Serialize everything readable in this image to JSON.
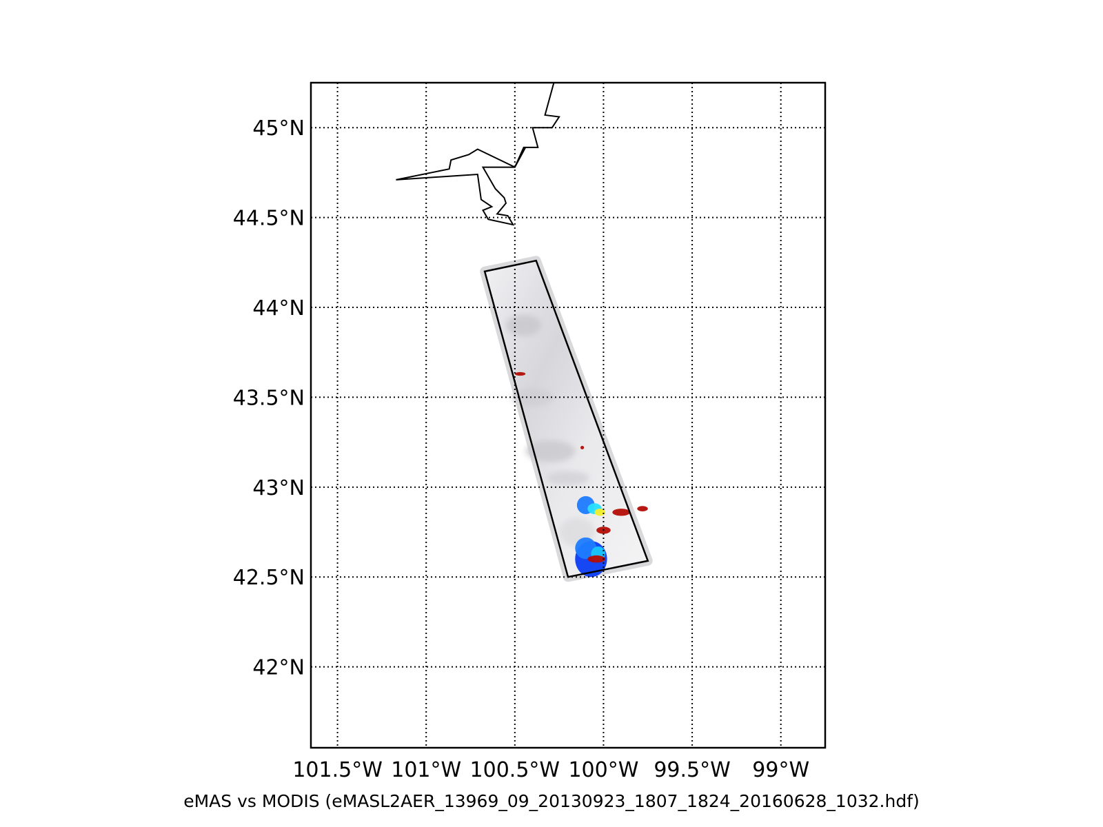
{
  "map": {
    "projection": "lat-lon",
    "lon_range": [
      -101.65,
      -98.75
    ],
    "lat_range": [
      41.55,
      45.25
    ],
    "meridians": [
      -101.5,
      -101.0,
      -100.5,
      -100.0,
      -99.5,
      -99.0
    ],
    "parallels": [
      42.0,
      42.5,
      43.0,
      43.5,
      44.0,
      44.5,
      45.0
    ],
    "lon_labels": [
      "101.5°W",
      "101°W",
      "100.5°W",
      "100°W",
      "99.5°W",
      "99°W"
    ],
    "lat_labels": [
      "42°N",
      "42.5°N",
      "43°N",
      "43.5°N",
      "44°N",
      "44.5°N",
      "45°N"
    ],
    "grid_style": "dotted",
    "frame_color": "#000000"
  },
  "caption": "eMAS vs MODIS (eMASL2AER_13969_09_20130923_1807_1824_20160628_1032.hdf)",
  "flight_box": {
    "corners": [
      {
        "lon": -100.67,
        "lat": 44.2
      },
      {
        "lon": -100.38,
        "lat": 44.26
      },
      {
        "lon": -99.75,
        "lat": 42.59
      },
      {
        "lon": -100.2,
        "lat": 42.5
      }
    ]
  },
  "boundary_line": {
    "points": [
      {
        "lon": -100.28,
        "lat": 45.25
      },
      {
        "lon": -100.33,
        "lat": 45.07
      },
      {
        "lon": -100.25,
        "lat": 45.06
      },
      {
        "lon": -100.29,
        "lat": 45.0
      },
      {
        "lon": -100.4,
        "lat": 45.0
      },
      {
        "lon": -100.37,
        "lat": 44.89
      },
      {
        "lon": -100.45,
        "lat": 44.89
      },
      {
        "lon": -100.5,
        "lat": 44.78
      },
      {
        "lon": -100.71,
        "lat": 44.88
      },
      {
        "lon": -100.76,
        "lat": 44.85
      },
      {
        "lon": -100.86,
        "lat": 44.82
      },
      {
        "lon": -100.87,
        "lat": 44.77
      },
      {
        "lon": -101.17,
        "lat": 44.71
      },
      {
        "lon": -100.71,
        "lat": 44.74
      },
      {
        "lon": -100.69,
        "lat": 44.6
      },
      {
        "lon": -100.63,
        "lat": 44.56
      },
      {
        "lon": -100.68,
        "lat": 44.54
      },
      {
        "lon": -100.65,
        "lat": 44.49
      },
      {
        "lon": -100.51,
        "lat": 44.46
      },
      {
        "lon": -100.54,
        "lat": 44.51
      },
      {
        "lon": -100.6,
        "lat": 44.52
      },
      {
        "lon": -100.55,
        "lat": 44.58
      },
      {
        "lon": -100.56,
        "lat": 44.61
      },
      {
        "lon": -100.61,
        "lat": 44.66
      },
      {
        "lon": -100.68,
        "lat": 44.78
      },
      {
        "lon": -100.5,
        "lat": 44.78
      },
      {
        "lon": -100.44,
        "lat": 44.89
      },
      {
        "lon": -100.45,
        "lat": 44.89
      }
    ]
  },
  "retrieval_patches": [
    {
      "lon": -100.07,
      "lat": 42.6,
      "rx": 0.09,
      "ry": 0.1,
      "color": "#0b3cf2"
    },
    {
      "lon": -100.1,
      "lat": 42.66,
      "rx": 0.06,
      "ry": 0.06,
      "color": "#1e7cff"
    },
    {
      "lon": -100.03,
      "lat": 42.63,
      "rx": 0.04,
      "ry": 0.04,
      "color": "#17c7ff"
    },
    {
      "lon": -100.1,
      "lat": 42.9,
      "rx": 0.05,
      "ry": 0.05,
      "color": "#1e7cff"
    },
    {
      "lon": -100.05,
      "lat": 42.88,
      "rx": 0.04,
      "ry": 0.03,
      "color": "#28e0ff"
    },
    {
      "lon": -100.02,
      "lat": 42.86,
      "rx": 0.03,
      "ry": 0.02,
      "color": "#f4ee2a"
    },
    {
      "lon": -99.9,
      "lat": 42.86,
      "rx": 0.05,
      "ry": 0.02,
      "color": "#b30d05"
    },
    {
      "lon": -100.0,
      "lat": 42.76,
      "rx": 0.04,
      "ry": 0.02,
      "color": "#b30d05"
    },
    {
      "lon": -100.04,
      "lat": 42.6,
      "rx": 0.05,
      "ry": 0.02,
      "color": "#b30d05"
    },
    {
      "lon": -99.78,
      "lat": 42.88,
      "rx": 0.03,
      "ry": 0.015,
      "color": "#b30d05"
    },
    {
      "lon": -100.47,
      "lat": 43.63,
      "rx": 0.03,
      "ry": 0.01,
      "color": "#b30d05"
    },
    {
      "lon": -100.12,
      "lat": 43.22,
      "rx": 0.01,
      "ry": 0.01,
      "color": "#b30d05"
    }
  ]
}
